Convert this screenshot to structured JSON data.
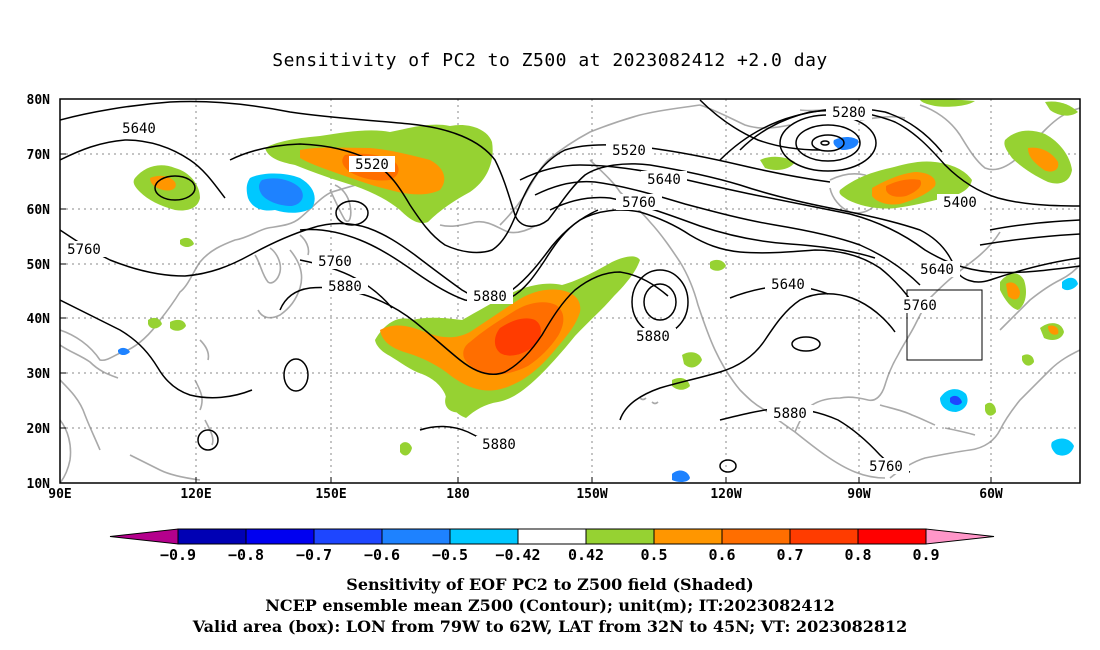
{
  "title": "Sensitivity of PC2 to Z500 at 2023082412 +2.0 day",
  "map": {
    "lat_labels": [
      "80N",
      "70N",
      "60N",
      "50N",
      "40N",
      "30N",
      "20N",
      "10N"
    ],
    "lon_labels": [
      "90E",
      "120E",
      "150E",
      "180",
      "150W",
      "120W",
      "90W",
      "60W"
    ],
    "contour_labels": [
      "5280",
      "5640",
      "5520",
      "5520",
      "5640",
      "5760",
      "5400",
      "5760",
      "5760",
      "5640",
      "5880",
      "5640",
      "5880",
      "5760",
      "5880",
      "5880",
      "5880",
      "5760"
    ],
    "valid_box": {
      "lon_west": "79W",
      "lon_east": "62W",
      "lat_south": "32N",
      "lat_north": "45N"
    },
    "colors": {
      "neg_strong": "#0000c8",
      "neg_mid": "#1e5af0",
      "neg_light": "#00c8ff",
      "pos_green": "#96d232",
      "pos_orange": "#ff9600",
      "pos_darkorange": "#ff6e00",
      "pos_red": "#ff2800",
      "land": "#a9a9a9"
    }
  },
  "colorbar": {
    "labels": [
      "−0.9",
      "−0.8",
      "−0.7",
      "−0.6",
      "−0.5",
      "−0.42",
      "0.42",
      "0.5",
      "0.6",
      "0.7",
      "0.8",
      "0.9"
    ],
    "colors": [
      "#b4008c",
      "#0000b4",
      "#0000f0",
      "#1e46ff",
      "#1e82ff",
      "#00c8ff",
      "#ffffff",
      "#96d232",
      "#ff9600",
      "#ff6e00",
      "#ff3c00",
      "#ff0000",
      "#ff96c8"
    ]
  },
  "captions": {
    "line1": "Sensitivity of EOF PC2 to Z500 field (Shaded)",
    "line2": "NCEP ensemble mean Z500 (Contour); unit(m); IT:2023082412",
    "line3": "Valid area (box): LON from 79W to 62W, LAT from 32N to 45N; VT: 2023082812"
  }
}
